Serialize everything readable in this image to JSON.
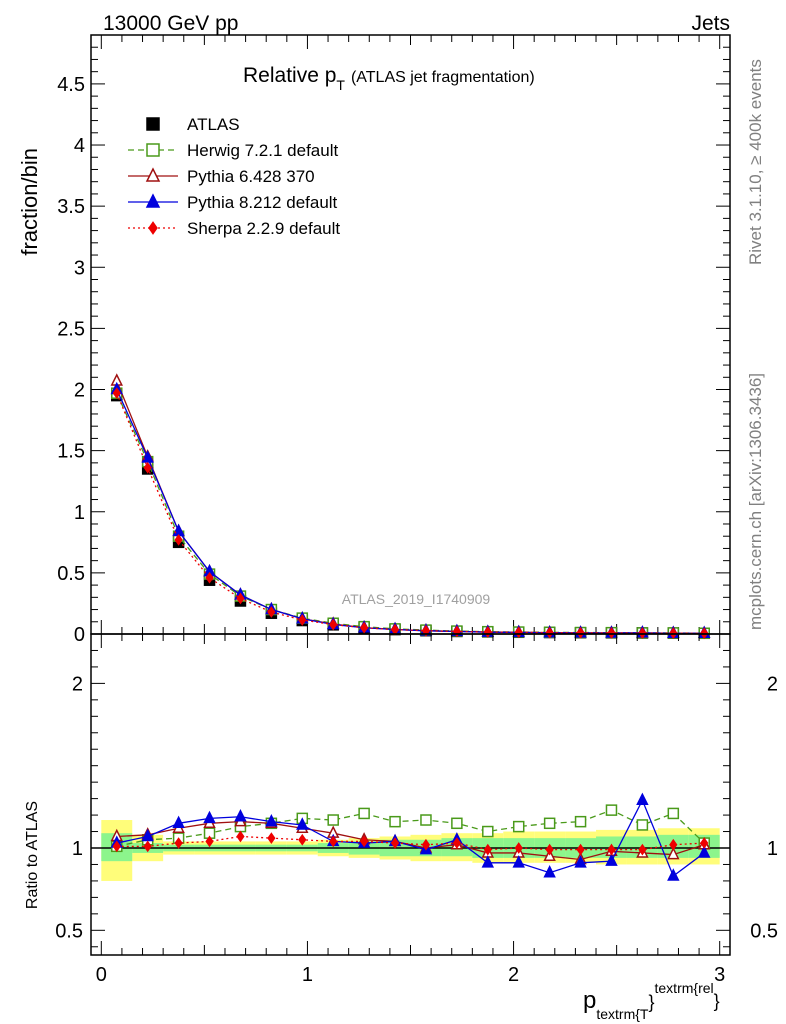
{
  "header": {
    "left": "13000 GeV pp",
    "right": "Jets"
  },
  "side_labels": {
    "rivet": "Rivet 3.1.10, ≥ 400k events",
    "mcplots": "mcplots.cern.ch [arXiv:1306.3436]"
  },
  "analysis_tag": "ATLAS_2019_I1740909",
  "title_main": "Relative p",
  "title_sub": "T",
  "title_suffix": "(ATLAS jet fragmentation)",
  "xlabel_main": "p",
  "xlabel_sub": "textrm{T",
  "xlabel_sup": "textrm{rel",
  "xlabel_brace": "}",
  "ylabel_top": "fraction/bin",
  "ylabel_bottom": "Ratio to ATLAS",
  "chart_data": [
    {
      "type": "scatter",
      "panel": "main",
      "ylim": [
        0,
        4.9
      ],
      "xlim": [
        -0.05,
        3.05
      ],
      "yticks": [
        {
          "v": 0,
          "label": "0"
        },
        {
          "v": 0.5,
          "label": "0.5"
        },
        {
          "v": 1,
          "label": "1"
        },
        {
          "v": 1.5,
          "label": "1.5"
        },
        {
          "v": 2,
          "label": "2"
        },
        {
          "v": 2.5,
          "label": "2.5"
        },
        {
          "v": 3,
          "label": "3"
        },
        {
          "v": 3.5,
          "label": "3.5"
        },
        {
          "v": 4,
          "label": "4"
        },
        {
          "v": 4.5,
          "label": "4.5"
        }
      ],
      "x": [
        0.075,
        0.225,
        0.375,
        0.525,
        0.675,
        0.825,
        0.975,
        1.125,
        1.275,
        1.425,
        1.575,
        1.725,
        1.875,
        2.025,
        2.175,
        2.325,
        2.475,
        2.625,
        2.775,
        2.925
      ],
      "series": [
        {
          "name": "ATLAS",
          "color": "#000000",
          "marker": "square-filled",
          "line": "none",
          "values": [
            1.95,
            1.35,
            0.75,
            0.44,
            0.27,
            0.17,
            0.11,
            0.075,
            0.05,
            0.036,
            0.027,
            0.021,
            0.017,
            0.014,
            0.012,
            0.01,
            0.009,
            0.008,
            0.007,
            0.006
          ]
        },
        {
          "name": "Herwig 7.2.1 default",
          "color": "#4a9a1a",
          "marker": "square-open",
          "line": "dashed",
          "values": [
            1.97,
            1.41,
            0.8,
            0.49,
            0.31,
            0.2,
            0.13,
            0.088,
            0.06,
            0.042,
            0.032,
            0.024,
            0.019,
            0.016,
            0.014,
            0.012,
            0.011,
            0.009,
            0.009,
            0.006
          ]
        },
        {
          "name": "Pythia 6.428 370",
          "color": "#a01010",
          "marker": "triangle-open",
          "line": "solid",
          "values": [
            2.07,
            1.45,
            0.84,
            0.51,
            0.32,
            0.2,
            0.125,
            0.082,
            0.052,
            0.037,
            0.027,
            0.021,
            0.016,
            0.014,
            0.011,
            0.009,
            0.009,
            0.008,
            0.007,
            0.006
          ]
        },
        {
          "name": "Pythia 8.212 default",
          "color": "#0000dd",
          "marker": "triangle-filled",
          "line": "solid",
          "values": [
            2.0,
            1.44,
            0.84,
            0.51,
            0.32,
            0.2,
            0.125,
            0.078,
            0.051,
            0.037,
            0.026,
            0.021,
            0.015,
            0.013,
            0.01,
            0.009,
            0.008,
            0.01,
            0.006,
            0.006
          ]
        },
        {
          "name": "Sherpa 2.2.9 default",
          "color": "#ee0000",
          "marker": "diamond-filled",
          "line": "dotted",
          "values": [
            1.97,
            1.36,
            0.77,
            0.46,
            0.29,
            0.18,
            0.115,
            0.077,
            0.051,
            0.036,
            0.027,
            0.021,
            0.016,
            0.014,
            0.011,
            0.01,
            0.009,
            0.008,
            0.007,
            0.006
          ]
        }
      ]
    },
    {
      "type": "scatter",
      "panel": "ratio",
      "ylim": [
        0.35,
        2.3
      ],
      "xlim": [
        -0.05,
        3.05
      ],
      "reference": 1,
      "yticks": [
        {
          "v": 0.5,
          "label": "0.5"
        },
        {
          "v": 1,
          "label": "1"
        },
        {
          "v": 2,
          "label": "2"
        }
      ],
      "xticks": [
        {
          "v": 0,
          "label": "0"
        },
        {
          "v": 1,
          "label": "1"
        },
        {
          "v": 2,
          "label": "2"
        },
        {
          "v": 3,
          "label": "3"
        }
      ],
      "x_edges": [
        0,
        0.15,
        0.3,
        0.45,
        0.6,
        0.75,
        0.9,
        1.05,
        1.2,
        1.35,
        1.5,
        1.65,
        1.8,
        1.95,
        2.1,
        2.25,
        2.4,
        2.55,
        2.7,
        2.85,
        3.0
      ],
      "band_green_lo": [
        0.92,
        0.97,
        0.98,
        0.98,
        0.98,
        0.98,
        0.98,
        0.97,
        0.96,
        0.95,
        0.95,
        0.95,
        0.94,
        0.94,
        0.94,
        0.94,
        0.94,
        0.94,
        0.94,
        0.94
      ],
      "band_green_hi": [
        1.09,
        1.03,
        1.02,
        1.02,
        1.02,
        1.02,
        1.02,
        1.03,
        1.04,
        1.05,
        1.05,
        1.06,
        1.06,
        1.06,
        1.06,
        1.06,
        1.07,
        1.07,
        1.08,
        1.08
      ],
      "band_yellow_lo": [
        0.8,
        0.92,
        0.96,
        0.96,
        0.96,
        0.96,
        0.96,
        0.95,
        0.94,
        0.93,
        0.92,
        0.92,
        0.91,
        0.91,
        0.91,
        0.91,
        0.9,
        0.9,
        0.9,
        0.9
      ],
      "band_yellow_hi": [
        1.17,
        1.08,
        1.04,
        1.04,
        1.04,
        1.04,
        1.04,
        1.05,
        1.06,
        1.07,
        1.08,
        1.09,
        1.09,
        1.1,
        1.1,
        1.1,
        1.11,
        1.11,
        1.12,
        1.12
      ],
      "x": [
        0.075,
        0.225,
        0.375,
        0.525,
        0.675,
        0.825,
        0.975,
        1.125,
        1.275,
        1.425,
        1.575,
        1.725,
        1.875,
        2.025,
        2.175,
        2.325,
        2.475,
        2.625,
        2.775,
        2.925
      ],
      "series": [
        {
          "name": "Herwig 7.2.1 default",
          "color": "#4a9a1a",
          "marker": "square-open",
          "line": "dashed",
          "values": [
            1.01,
            1.05,
            1.06,
            1.09,
            1.13,
            1.15,
            1.18,
            1.17,
            1.21,
            1.16,
            1.17,
            1.15,
            1.1,
            1.13,
            1.15,
            1.16,
            1.23,
            1.14,
            1.21,
            1.03
          ]
        },
        {
          "name": "Pythia 6.428 370",
          "color": "#a01010",
          "marker": "triangle-open",
          "line": "solid",
          "values": [
            1.07,
            1.08,
            1.12,
            1.15,
            1.16,
            1.15,
            1.12,
            1.09,
            1.05,
            1.04,
            1.0,
            1.02,
            0.97,
            0.97,
            0.95,
            0.93,
            0.98,
            0.97,
            0.96,
            1.02
          ]
        },
        {
          "name": "Pythia 8.212 default",
          "color": "#0000dd",
          "marker": "triangle-filled",
          "line": "solid",
          "values": [
            1.03,
            1.07,
            1.15,
            1.18,
            1.19,
            1.16,
            1.14,
            1.04,
            1.03,
            1.04,
            0.99,
            1.05,
            0.91,
            0.91,
            0.85,
            0.91,
            0.92,
            1.29,
            0.83,
            0.97
          ]
        },
        {
          "name": "Sherpa 2.2.9 default",
          "color": "#ee0000",
          "marker": "diamond-filled",
          "line": "dotted",
          "values": [
            1.01,
            1.01,
            1.03,
            1.04,
            1.07,
            1.06,
            1.05,
            1.04,
            1.04,
            1.03,
            1.02,
            1.03,
            0.99,
            1.0,
            0.99,
            0.99,
            0.99,
            0.99,
            1.02,
            1.03
          ]
        }
      ]
    }
  ]
}
